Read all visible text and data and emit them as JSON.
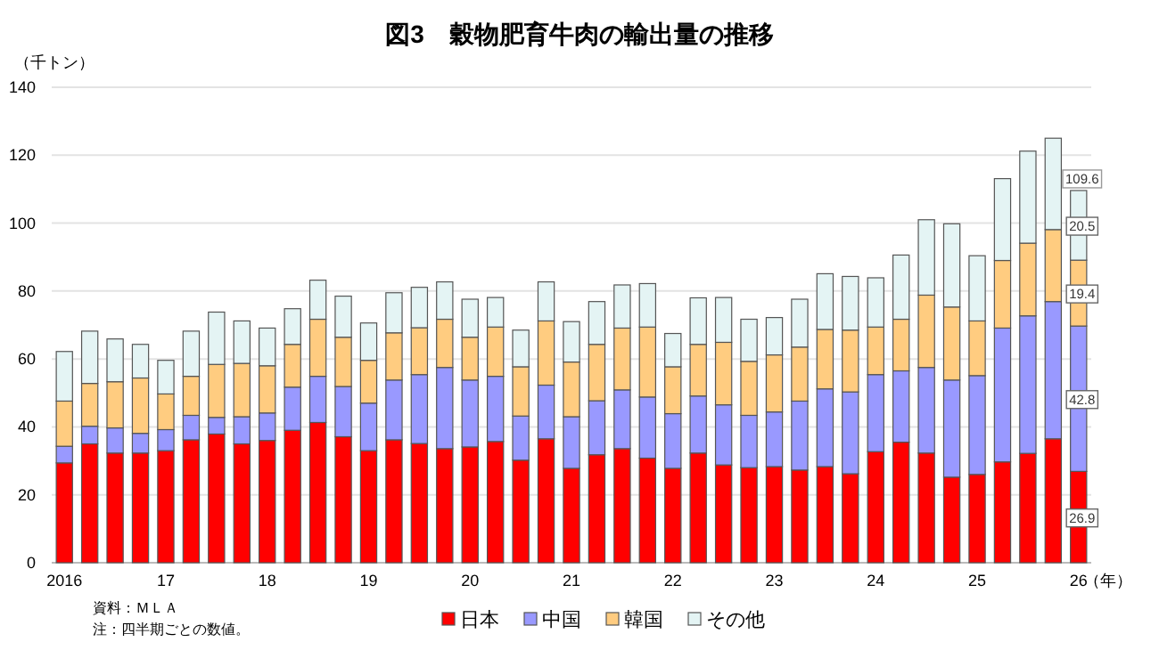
{
  "chart_data": {
    "type": "bar",
    "stacked": true,
    "title": "図3　穀物肥育牛肉の輸出量の推移",
    "ylabel": "（千トン）",
    "categories": [
      "2016",
      null,
      null,
      null,
      "17",
      null,
      null,
      null,
      "18",
      null,
      null,
      null,
      "19",
      null,
      null,
      null,
      "20",
      null,
      null,
      null,
      "21",
      null,
      null,
      null,
      "22",
      null,
      null,
      null,
      "23",
      null,
      null,
      null,
      "24",
      null,
      null,
      null,
      "25",
      null,
      null,
      null,
      "26"
    ],
    "series": [
      {
        "name": "日本",
        "color": "#ff0000",
        "values": [
          29.4,
          35.0,
          32.3,
          32.3,
          33.0,
          36.2,
          37.9,
          35.0,
          36.0,
          39.0,
          41.3,
          37.1,
          33.0,
          36.2,
          35.1,
          33.6,
          34.1,
          35.7,
          30.2,
          36.5,
          27.8,
          31.8,
          33.6,
          30.8,
          27.8,
          32.3,
          28.8,
          28.0,
          28.3,
          27.3,
          28.3,
          26.2,
          32.7,
          35.5,
          32.3,
          25.2,
          26.0,
          29.7,
          32.2,
          36.5,
          26.9
        ],
        "value_labels": [
          null,
          null,
          null,
          null,
          null,
          null,
          null,
          null,
          null,
          null,
          null,
          null,
          null,
          null,
          null,
          null,
          null,
          null,
          null,
          null,
          null,
          null,
          null,
          null,
          null,
          null,
          null,
          null,
          null,
          null,
          null,
          null,
          null,
          null,
          null,
          null,
          null,
          null,
          null,
          null,
          "26.9"
        ]
      },
      {
        "name": "中国",
        "color": "#9999ff",
        "values": [
          4.9,
          5.2,
          7.4,
          5.8,
          6.2,
          7.2,
          4.9,
          8.0,
          8.1,
          12.7,
          13.6,
          14.8,
          14.0,
          17.6,
          20.3,
          23.9,
          19.7,
          19.2,
          13.0,
          15.8,
          15.2,
          15.9,
          17.3,
          18.0,
          16.1,
          16.8,
          17.7,
          15.4,
          16.1,
          20.3,
          22.9,
          24.1,
          22.7,
          21.0,
          25.2,
          28.6,
          29.1,
          39.4,
          40.5,
          40.4,
          42.8
        ],
        "value_labels": [
          null,
          null,
          null,
          null,
          null,
          null,
          null,
          null,
          null,
          null,
          null,
          null,
          null,
          null,
          null,
          null,
          null,
          null,
          null,
          null,
          null,
          null,
          null,
          null,
          null,
          null,
          null,
          null,
          null,
          null,
          null,
          null,
          null,
          null,
          null,
          null,
          null,
          null,
          null,
          null,
          "42.8"
        ]
      },
      {
        "name": "韓国",
        "color": "#ffcc80",
        "values": [
          13.3,
          12.6,
          13.6,
          16.3,
          10.5,
          11.5,
          15.6,
          15.7,
          13.9,
          12.6,
          16.8,
          14.5,
          12.6,
          13.9,
          13.8,
          14.2,
          12.6,
          14.5,
          14.5,
          18.9,
          16.1,
          16.6,
          18.2,
          20.6,
          13.8,
          15.2,
          18.4,
          15.9,
          16.8,
          15.9,
          17.5,
          18.2,
          14.0,
          15.2,
          21.3,
          21.5,
          16.1,
          19.9,
          21.4,
          21.2,
          19.4
        ],
        "value_labels": [
          null,
          null,
          null,
          null,
          null,
          null,
          null,
          null,
          null,
          null,
          null,
          null,
          null,
          null,
          null,
          null,
          null,
          null,
          null,
          null,
          null,
          null,
          null,
          null,
          null,
          null,
          null,
          null,
          null,
          null,
          null,
          null,
          null,
          null,
          null,
          null,
          null,
          null,
          null,
          null,
          "19.4"
        ]
      },
      {
        "name": "その他",
        "color": "#e4f4f4",
        "values": [
          14.6,
          15.4,
          12.6,
          9.9,
          9.9,
          13.3,
          15.4,
          12.5,
          11.1,
          10.5,
          11.5,
          12.1,
          11.0,
          11.8,
          11.9,
          11.0,
          11.2,
          8.7,
          10.8,
          11.5,
          11.9,
          12.6,
          12.7,
          12.8,
          9.8,
          13.7,
          13.2,
          12.4,
          11.0,
          14.1,
          16.4,
          15.8,
          14.5,
          18.9,
          22.2,
          24.5,
          19.2,
          24.1,
          27.1,
          26.9,
          20.5
        ],
        "value_labels": [
          null,
          null,
          null,
          null,
          null,
          null,
          null,
          null,
          null,
          null,
          null,
          null,
          null,
          null,
          null,
          null,
          null,
          null,
          null,
          null,
          null,
          null,
          null,
          null,
          null,
          null,
          null,
          null,
          null,
          null,
          null,
          null,
          null,
          null,
          null,
          null,
          null,
          null,
          null,
          null,
          "20.5"
        ]
      }
    ],
    "totals": [
      null,
      null,
      null,
      null,
      null,
      null,
      null,
      null,
      null,
      null,
      null,
      null,
      null,
      null,
      null,
      null,
      null,
      null,
      null,
      null,
      null,
      null,
      null,
      null,
      null,
      null,
      null,
      null,
      null,
      null,
      null,
      null,
      null,
      null,
      null,
      null,
      null,
      null,
      null,
      null,
      "109.6"
    ],
    "ylim": [
      0,
      140
    ],
    "yticks": [
      0,
      20,
      40,
      60,
      80,
      100,
      120,
      140
    ],
    "grid": "y",
    "legend": "bottom",
    "annotations": [
      "（年）",
      "資料：ＭＬＡ",
      "注：四半期ごとの数値。"
    ]
  }
}
